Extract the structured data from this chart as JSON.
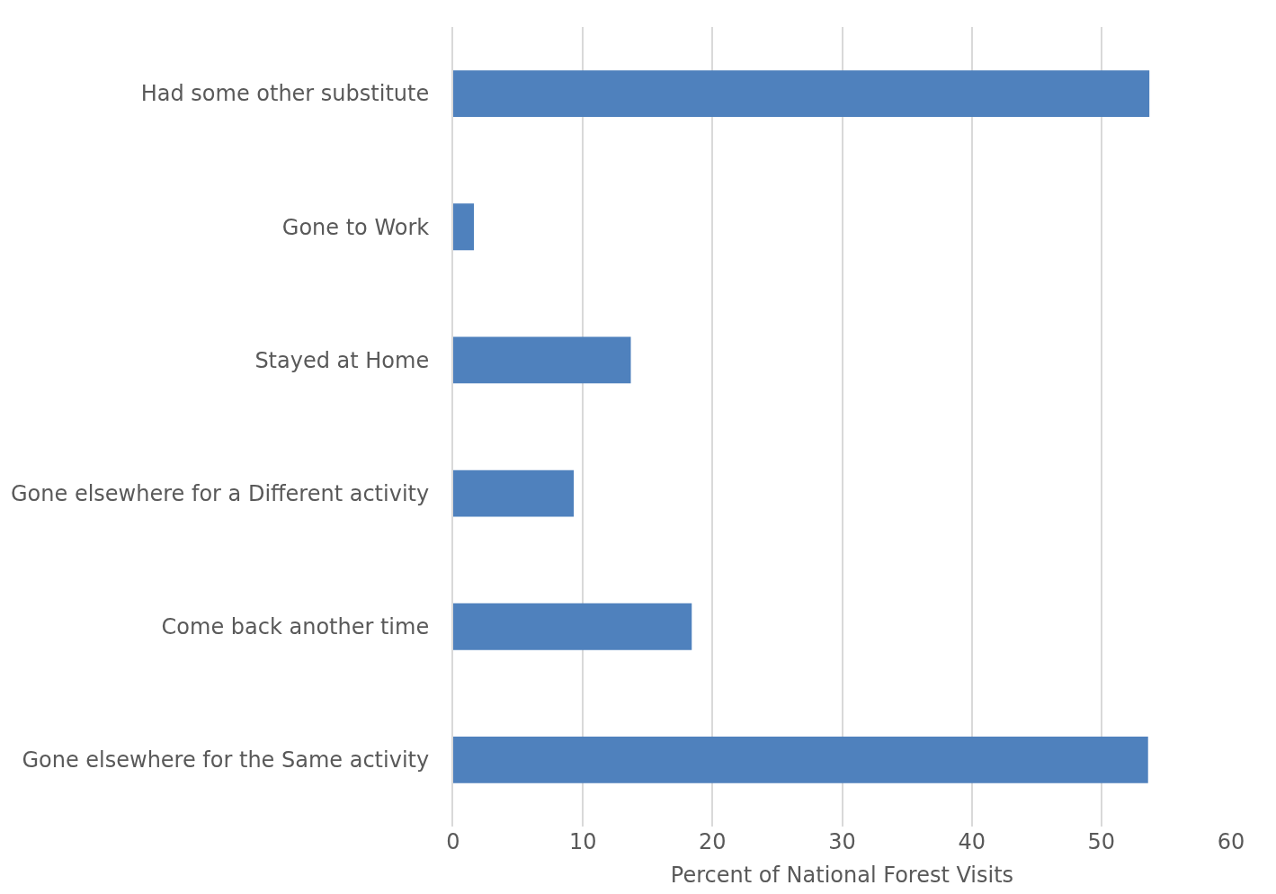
{
  "chart_data": {
    "type": "bar",
    "orientation": "horizontal",
    "xlabel": "Percent of National Forest Visits",
    "categories": [
      "Had some other substitute",
      "Gone to Work",
      "Stayed at Home",
      "Gone elsewhere for a Different activity",
      "Come back another time",
      "Gone elsewhere for the Same activity"
    ],
    "values": [
      53.7,
      1.6,
      13.7,
      9.3,
      18.4,
      53.6
    ],
    "color": "#4f81bd",
    "xlim": [
      0,
      60
    ],
    "xticks": [
      0,
      10,
      20,
      30,
      40,
      50,
      60
    ],
    "grid": "x"
  }
}
